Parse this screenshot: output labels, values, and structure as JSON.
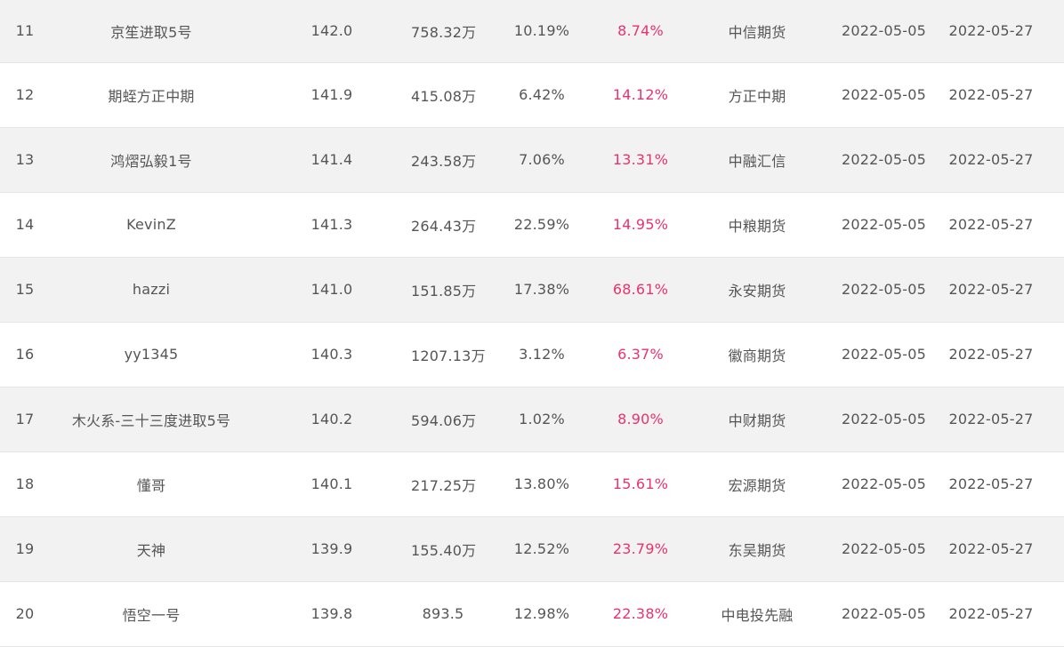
{
  "colors": {
    "accent": "#e8336d",
    "stripe": "#f2f2f2",
    "text": "#555555",
    "divider": "#e6e6e6"
  },
  "rows": [
    {
      "rank": "11",
      "name": "京笙进取5号",
      "score": "142.0",
      "equity": "758.32万",
      "return": "10.19%",
      "drawdown": "8.74%",
      "broker": "中信期货",
      "start": "2022-05-05",
      "end": "2022-05-27"
    },
    {
      "rank": "12",
      "name": "期蛭方正中期",
      "score": "141.9",
      "equity": "415.08万",
      "return": "6.42%",
      "drawdown": "14.12%",
      "broker": "方正中期",
      "start": "2022-05-05",
      "end": "2022-05-27"
    },
    {
      "rank": "13",
      "name": "鸿熠弘毅1号",
      "score": "141.4",
      "equity": "243.58万",
      "return": "7.06%",
      "drawdown": "13.31%",
      "broker": "中融汇信",
      "start": "2022-05-05",
      "end": "2022-05-27"
    },
    {
      "rank": "14",
      "name": "KevinZ",
      "score": "141.3",
      "equity": "264.43万",
      "return": "22.59%",
      "drawdown": "14.95%",
      "broker": "中粮期货",
      "start": "2022-05-05",
      "end": "2022-05-27"
    },
    {
      "rank": "15",
      "name": "hazzi",
      "score": "141.0",
      "equity": "151.85万",
      "return": "17.38%",
      "drawdown": "68.61%",
      "broker": "永安期货",
      "start": "2022-05-05",
      "end": "2022-05-27"
    },
    {
      "rank": "16",
      "name": "yy1345",
      "score": "140.3",
      "equity": "1207.13万",
      "return": "3.12%",
      "drawdown": "6.37%",
      "broker": "徽商期货",
      "start": "2022-05-05",
      "end": "2022-05-27"
    },
    {
      "rank": "17",
      "name": "木火系-三十三度进取5号",
      "score": "140.2",
      "equity": "594.06万",
      "return": "1.02%",
      "drawdown": "8.90%",
      "broker": "中财期货",
      "start": "2022-05-05",
      "end": "2022-05-27"
    },
    {
      "rank": "18",
      "name": "懂哥",
      "score": "140.1",
      "equity": "217.25万",
      "return": "13.80%",
      "drawdown": "15.61%",
      "broker": "宏源期货",
      "start": "2022-05-05",
      "end": "2022-05-27"
    },
    {
      "rank": "19",
      "name": "天神",
      "score": "139.9",
      "equity": "155.40万",
      "return": "12.52%",
      "drawdown": "23.79%",
      "broker": "东吴期货",
      "start": "2022-05-05",
      "end": "2022-05-27"
    },
    {
      "rank": "20",
      "name": "悟空一号",
      "score": "139.8",
      "equity": "893.5",
      "return": "12.98%",
      "drawdown": "22.38%",
      "broker": "中电投先融",
      "start": "2022-05-05",
      "end": "2022-05-27"
    }
  ]
}
